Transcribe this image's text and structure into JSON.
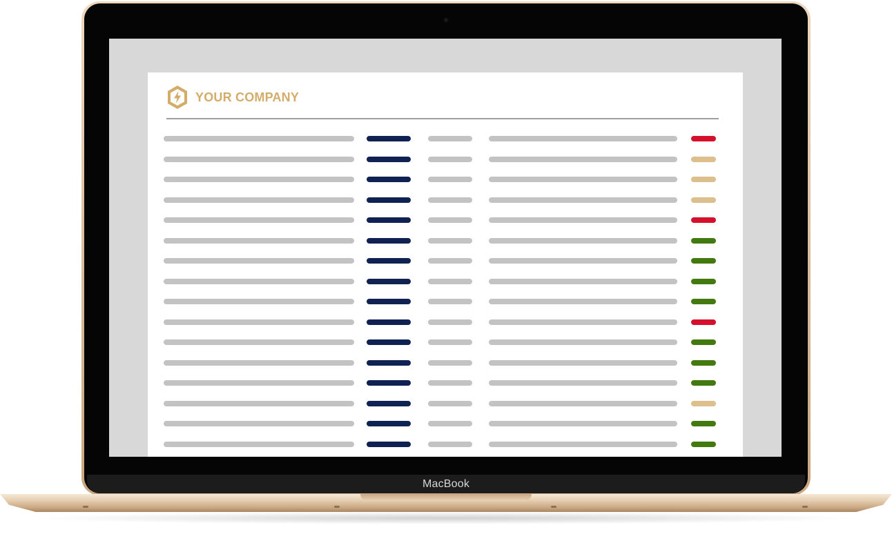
{
  "company": {
    "name": "YOUR COMPANY",
    "logo_icon": "hexagon-lightning-icon",
    "accent_color": "#d4ac6a"
  },
  "device": {
    "brand": "MacBook"
  },
  "colors": {
    "primary_bar": "#0f2252",
    "placeholder_bar": "#c3c3c3",
    "status_red": "#d5102d",
    "status_tan": "#dcbf8c",
    "status_green": "#437a10"
  },
  "table": {
    "columns": [
      "text-placeholder",
      "primary-placeholder",
      "short-placeholder",
      "text-placeholder",
      "status"
    ],
    "rows": [
      {
        "status": "red"
      },
      {
        "status": "tan"
      },
      {
        "status": "tan"
      },
      {
        "status": "tan"
      },
      {
        "status": "red"
      },
      {
        "status": "green"
      },
      {
        "status": "green"
      },
      {
        "status": "green"
      },
      {
        "status": "green"
      },
      {
        "status": "red"
      },
      {
        "status": "green"
      },
      {
        "status": "green"
      },
      {
        "status": "green"
      },
      {
        "status": "tan"
      },
      {
        "status": "green"
      },
      {
        "status": "green"
      }
    ]
  }
}
